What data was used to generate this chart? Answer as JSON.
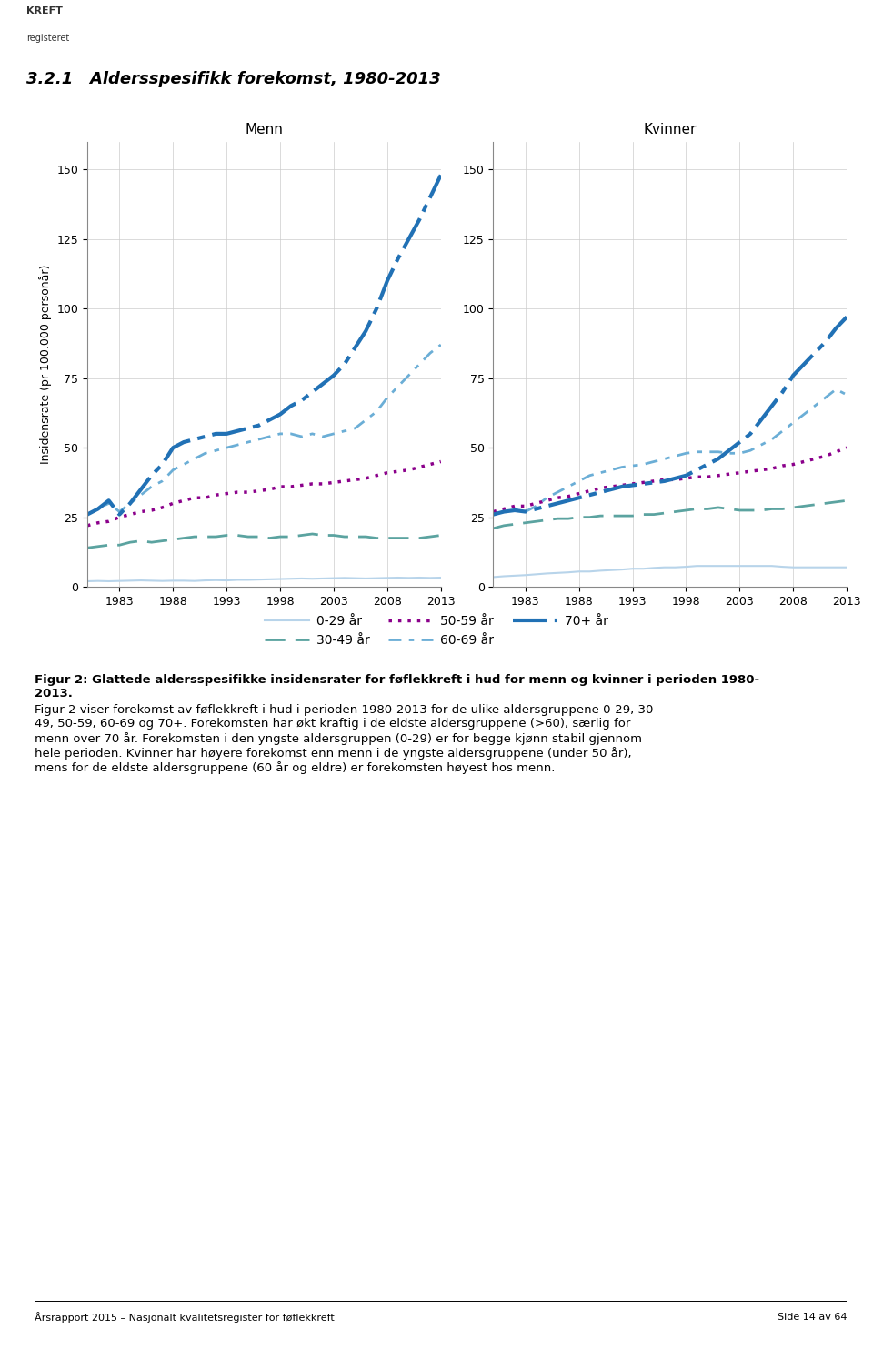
{
  "title_section": "3.2.1   Aldersspesifikk forekomst, 1980-2013",
  "subplot_titles": [
    "Menn",
    "Kvinner"
  ],
  "ylabel": "Insidensrate (pr 100.000 personår)",
  "years": [
    1980,
    1981,
    1982,
    1983,
    1984,
    1985,
    1986,
    1987,
    1988,
    1989,
    1990,
    1991,
    1992,
    1993,
    1994,
    1995,
    1996,
    1997,
    1998,
    1999,
    2000,
    2001,
    2002,
    2003,
    2004,
    2005,
    2006,
    2007,
    2008,
    2009,
    2010,
    2011,
    2012,
    2013
  ],
  "menn": {
    "age_0_29": [
      2.0,
      2.1,
      2.0,
      2.1,
      2.2,
      2.3,
      2.2,
      2.1,
      2.2,
      2.2,
      2.1,
      2.3,
      2.4,
      2.3,
      2.5,
      2.5,
      2.6,
      2.7,
      2.8,
      2.9,
      3.0,
      2.9,
      3.0,
      3.1,
      3.2,
      3.1,
      3.0,
      3.1,
      3.2,
      3.3,
      3.2,
      3.3,
      3.2,
      3.3
    ],
    "age_30_49": [
      14.0,
      14.5,
      15.0,
      15.0,
      16.0,
      16.5,
      16.0,
      16.5,
      17.0,
      17.5,
      18.0,
      18.0,
      18.0,
      18.5,
      18.5,
      18.0,
      18.0,
      17.5,
      18.0,
      18.0,
      18.5,
      19.0,
      18.5,
      18.5,
      18.0,
      18.0,
      18.0,
      17.5,
      17.5,
      17.5,
      17.5,
      17.5,
      18.0,
      18.5
    ],
    "age_50_59": [
      22.0,
      23.0,
      23.5,
      25.0,
      26.0,
      27.0,
      27.5,
      28.5,
      30.0,
      31.0,
      32.0,
      32.0,
      33.0,
      33.5,
      34.0,
      34.0,
      34.5,
      35.0,
      36.0,
      36.0,
      36.5,
      37.0,
      37.0,
      37.5,
      38.0,
      38.5,
      39.0,
      40.0,
      41.0,
      41.5,
      42.0,
      43.0,
      44.0,
      45.0
    ],
    "age_60_69": [
      26.0,
      28.0,
      30.0,
      27.0,
      30.0,
      33.0,
      36.0,
      38.0,
      42.0,
      44.0,
      46.0,
      48.0,
      49.0,
      50.0,
      51.0,
      52.0,
      53.0,
      54.0,
      55.0,
      55.0,
      54.0,
      55.0,
      54.0,
      55.0,
      56.0,
      57.0,
      60.0,
      63.0,
      68.0,
      72.0,
      76.0,
      80.0,
      84.0,
      87.0
    ],
    "age_70p": [
      26.0,
      28.0,
      31.0,
      26.0,
      30.0,
      35.0,
      40.0,
      44.0,
      50.0,
      52.0,
      53.0,
      54.0,
      55.0,
      55.0,
      56.0,
      57.0,
      58.0,
      60.0,
      62.0,
      65.0,
      67.0,
      70.0,
      73.0,
      76.0,
      80.0,
      86.0,
      92.0,
      100.0,
      110.0,
      118.0,
      125.0,
      132.0,
      140.0,
      148.0
    ]
  },
  "kvinner": {
    "age_0_29": [
      3.5,
      3.8,
      4.0,
      4.2,
      4.5,
      4.8,
      5.0,
      5.2,
      5.5,
      5.5,
      5.8,
      6.0,
      6.2,
      6.5,
      6.5,
      6.8,
      7.0,
      7.0,
      7.2,
      7.5,
      7.5,
      7.5,
      7.5,
      7.5,
      7.5,
      7.5,
      7.5,
      7.2,
      7.0,
      7.0,
      7.0,
      7.0,
      7.0,
      7.0
    ],
    "age_30_49": [
      21.0,
      22.0,
      22.5,
      23.0,
      23.5,
      24.0,
      24.5,
      24.5,
      25.0,
      25.0,
      25.5,
      25.5,
      25.5,
      25.5,
      26.0,
      26.0,
      26.5,
      27.0,
      27.5,
      28.0,
      28.0,
      28.5,
      28.0,
      27.5,
      27.5,
      27.5,
      28.0,
      28.0,
      28.5,
      29.0,
      29.5,
      30.0,
      30.5,
      31.0
    ],
    "age_50_59": [
      27.0,
      28.0,
      29.0,
      29.0,
      30.0,
      31.0,
      32.0,
      32.5,
      33.5,
      34.5,
      35.5,
      36.0,
      36.5,
      37.0,
      37.5,
      38.0,
      38.5,
      38.5,
      39.0,
      39.5,
      39.5,
      40.0,
      40.5,
      41.0,
      41.5,
      42.0,
      42.5,
      43.5,
      44.0,
      45.0,
      46.0,
      47.0,
      48.5,
      50.0
    ],
    "age_60_69": [
      26.0,
      27.0,
      28.0,
      27.0,
      29.0,
      32.0,
      34.0,
      36.0,
      38.0,
      40.0,
      41.0,
      42.0,
      43.0,
      43.5,
      44.0,
      45.0,
      46.0,
      47.0,
      48.0,
      48.5,
      48.5,
      48.5,
      48.0,
      48.0,
      49.0,
      51.0,
      53.0,
      56.0,
      59.0,
      62.0,
      65.0,
      68.0,
      71.0,
      69.0
    ],
    "age_70p": [
      26.0,
      27.0,
      27.5,
      27.0,
      28.0,
      29.0,
      30.0,
      31.0,
      32.0,
      33.0,
      34.0,
      35.0,
      36.0,
      36.5,
      37.0,
      37.5,
      38.0,
      39.0,
      40.0,
      42.0,
      44.0,
      46.0,
      49.0,
      52.0,
      55.0,
      60.0,
      65.0,
      70.0,
      76.0,
      80.0,
      84.0,
      88.0,
      93.0,
      97.0
    ]
  },
  "colors": {
    "age_0_29": "#b8d4ea",
    "age_30_49": "#5ba3a0",
    "age_50_59": "#8b008b",
    "age_60_69": "#6baed6",
    "age_70p": "#2171b5"
  },
  "ylim": [
    0,
    160
  ],
  "yticks": [
    0,
    25,
    50,
    75,
    100,
    125,
    150
  ],
  "xticks": [
    1983,
    1988,
    1993,
    1998,
    2003,
    2008,
    2013
  ],
  "figure_caption_bold": "Figur 2: Glattede aldersspesifikke insidensrater for føflekkreft i hud for menn og kvinner i perioden 1980-\n2013.",
  "figure_caption_normal": "Figur 2 viser forekomst av føflekkreft i hud i perioden 1980-2013 for de ulike aldersgruppene 0-29, 30-\n49, 50-59, 60-69 og 70+. Forekomsten har økt kraftig i de eldste aldersgruppene (>60), særlig for\nmenn over 70 år. Forekomsten i den yngste aldersgruppen (0-29) er for begge kjønn stabil gjennom\nhele perioden. Kvinner har høyere forekomst enn menn i de yngste aldersgruppene (under 50 år),\nmens for de eldste aldersgruppene (60 år og eldre) er forekomsten høyest hos menn.",
  "footer_left": "Årsrapport 2015 – Nasjonalt kvalitetsregister for føflekkreft",
  "footer_right": "Side 14 av 64"
}
